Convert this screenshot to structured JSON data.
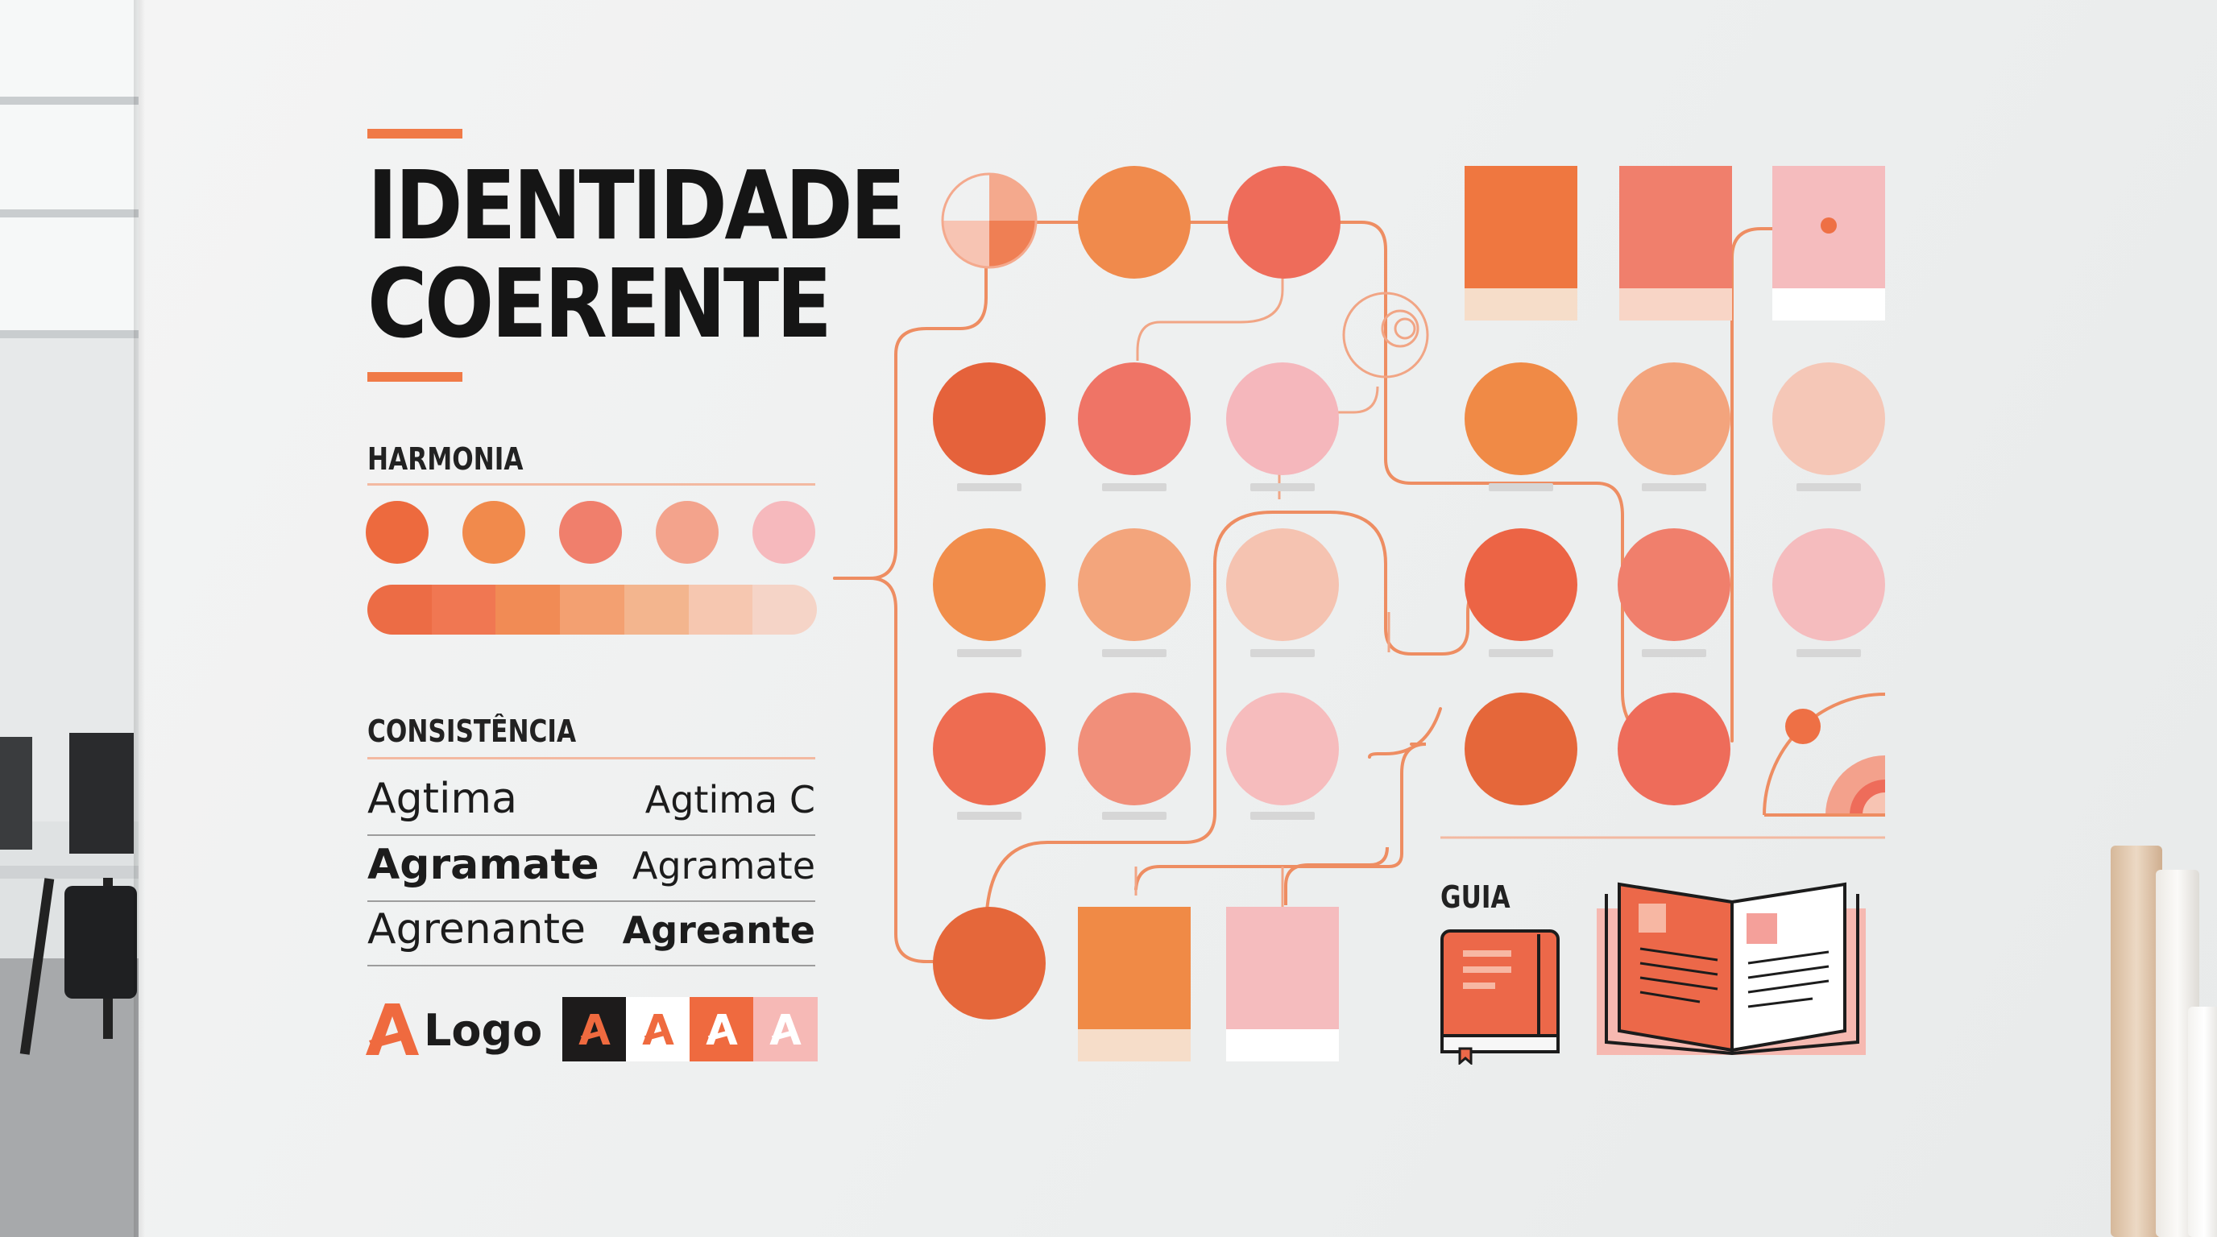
{
  "title": {
    "line1": "IDENTIDADE",
    "line2": "COERENTE"
  },
  "harmonia": {
    "label": "HARMONIA",
    "dots": [
      "#ed6a3e",
      "#f18a4c",
      "#f07f6c",
      "#f3a38c",
      "#f6b9bd"
    ],
    "gradient": [
      "#ec6c45",
      "#f07752",
      "#f18b55",
      "#f3a071",
      "#f3b58e",
      "#f6c7b0",
      "#f5d4c7"
    ]
  },
  "consistencia": {
    "label": "CONSISTÊNCIA",
    "rows": [
      {
        "left": "Agtima",
        "right": "Agtima C",
        "left_bold": false,
        "right_bold": false
      },
      {
        "left": "Agramate",
        "right": "Agramate",
        "left_bold": true,
        "right_bold": false
      },
      {
        "left": "Agrenante",
        "right": "Agreante",
        "left_bold": false,
        "right_bold": true
      }
    ]
  },
  "logo": {
    "mark": "A",
    "text": "Logo",
    "swatches": [
      {
        "letter": "A",
        "bg": "#1d1b1b",
        "fg": "#ef6a3f"
      },
      {
        "letter": "A",
        "bg": "#ffffff",
        "fg": "#ef6a3f"
      },
      {
        "letter": "A",
        "bg": "#ef6a3f",
        "fg": "#ffffff"
      },
      {
        "letter": "A",
        "bg": "#f6b9b6",
        "fg": "#ffffff"
      }
    ]
  },
  "guia": {
    "label": "GUIA"
  },
  "colors": {
    "accent": "#f07a47",
    "text": "#151515",
    "line": "#ee8d62"
  }
}
